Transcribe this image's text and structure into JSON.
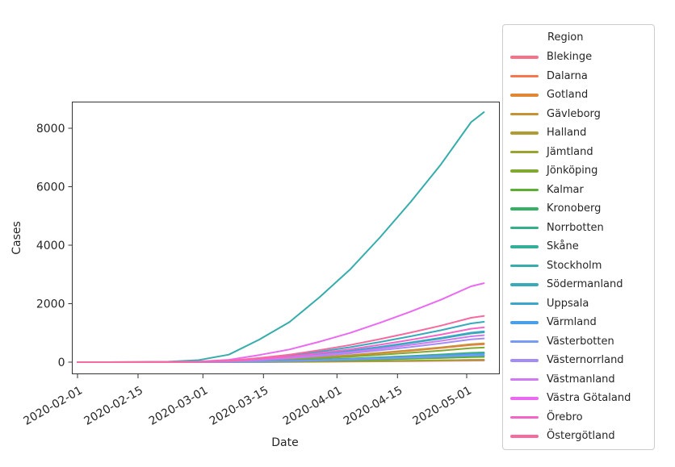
{
  "colors": {
    "text": "#262626",
    "spine": "#333333",
    "legend_border": "#cccccc",
    "background": "#ffffff"
  },
  "chart_data": {
    "type": "line",
    "title": "",
    "xlabel": "Date",
    "ylabel": "Cases",
    "legend_title": "Region",
    "legend_position": "right-outside",
    "grid": false,
    "x_start": "2020-02-01",
    "x_ticks": [
      "2020-02-01",
      "2020-02-15",
      "2020-03-01",
      "2020-03-15",
      "2020-04-01",
      "2020-04-15",
      "2020-05-01"
    ],
    "y_ticks": [
      0,
      2000,
      4000,
      6000,
      8000
    ],
    "ylim": [
      -390,
      8910
    ],
    "x": [
      "2020-02-01",
      "2020-02-08",
      "2020-02-15",
      "2020-02-22",
      "2020-02-29",
      "2020-03-07",
      "2020-03-14",
      "2020-03-21",
      "2020-03-28",
      "2020-04-04",
      "2020-04-11",
      "2020-04-18",
      "2020-04-25",
      "2020-05-02",
      "2020-05-05"
    ],
    "series": [
      {
        "name": "Blekinge",
        "color": "#f77189",
        "values": [
          0,
          0,
          0,
          0,
          0,
          2,
          5,
          9,
          14,
          20,
          28,
          35,
          43,
          53,
          55
        ]
      },
      {
        "name": "Dalarna",
        "color": "#f7764d",
        "values": [
          0,
          0,
          1,
          1,
          5,
          18,
          55,
          98,
          159,
          226,
          305,
          390,
          482,
          586,
          610
        ]
      },
      {
        "name": "Gotland",
        "color": "#e08634",
        "values": [
          0,
          0,
          0,
          0,
          1,
          2,
          7,
          13,
          21,
          30,
          40,
          51,
          63,
          77,
          80
        ]
      },
      {
        "name": "Gävleborg",
        "color": "#c69233",
        "values": [
          0,
          0,
          1,
          1,
          5,
          19,
          58,
          102,
          166,
          237,
          320,
          410,
          506,
          614,
          640
        ]
      },
      {
        "name": "Halland",
        "color": "#b19c31",
        "values": [
          0,
          0,
          0,
          1,
          2,
          9,
          28,
          50,
          81,
          115,
          155,
          198,
          245,
          298,
          310
        ]
      },
      {
        "name": "Jämtland",
        "color": "#9aa331",
        "values": [
          0,
          0,
          0,
          0,
          1,
          2,
          7,
          13,
          21,
          30,
          40,
          51,
          63,
          77,
          80
        ]
      },
      {
        "name": "Jönköping",
        "color": "#81a931",
        "values": [
          0,
          0,
          0,
          1,
          4,
          15,
          45,
          80,
          130,
          185,
          250,
          320,
          395,
          480,
          500
        ]
      },
      {
        "name": "Kalmar",
        "color": "#5bae33",
        "values": [
          0,
          0,
          0,
          0,
          1,
          5,
          16,
          29,
          47,
          67,
          90,
          115,
          142,
          173,
          180
        ]
      },
      {
        "name": "Kronoberg",
        "color": "#35b065",
        "values": [
          0,
          0,
          0,
          1,
          3,
          10,
          30,
          53,
          86,
          122,
          165,
          211,
          261,
          317,
          330
        ]
      },
      {
        "name": "Norrbotten",
        "color": "#33b089",
        "values": [
          0,
          0,
          0,
          0,
          2,
          7,
          21,
          37,
          60,
          85,
          115,
          147,
          182,
          221,
          230
        ]
      },
      {
        "name": "Skåne",
        "color": "#34af99",
        "values": [
          0,
          0,
          1,
          2,
          8,
          31,
          92,
          163,
          265,
          377,
          510,
          653,
          806,
          979,
          1020
        ]
      },
      {
        "name": "Stockholm",
        "color": "#36acab",
        "values": [
          0,
          0,
          9,
          17,
          68,
          257,
          770,
          1368,
          2223,
          3164,
          4275,
          5472,
          6755,
          8208,
          8550
        ]
      },
      {
        "name": "Södermanland",
        "color": "#37aabb",
        "values": [
          0,
          0,
          1,
          3,
          11,
          41,
          124,
          221,
          359,
          511,
          690,
          883,
          1090,
          1325,
          1380
        ]
      },
      {
        "name": "Uppsala",
        "color": "#3aa6cc",
        "values": [
          0,
          0,
          1,
          2,
          8,
          32,
          95,
          168,
          273,
          389,
          525,
          672,
          830,
          1008,
          1050
        ]
      },
      {
        "name": "Värmland",
        "color": "#49a0e9",
        "values": [
          0,
          0,
          0,
          1,
          2,
          9,
          26,
          46,
          75,
          107,
          145,
          186,
          229,
          278,
          290
        ]
      },
      {
        "name": "Västerbotten",
        "color": "#779af4",
        "values": [
          0,
          0,
          0,
          0,
          2,
          7,
          22,
          38,
          62,
          89,
          120,
          154,
          190,
          230,
          240
        ]
      },
      {
        "name": "Västernorrland",
        "color": "#a38df4",
        "values": [
          0,
          0,
          1,
          2,
          6,
          24,
          73,
          130,
          211,
          300,
          405,
          518,
          640,
          778,
          810
        ]
      },
      {
        "name": "Västmanland",
        "color": "#cf79f4",
        "values": [
          0,
          0,
          1,
          2,
          7,
          28,
          83,
          147,
          239,
          340,
          460,
          589,
          727,
          883,
          920
        ]
      },
      {
        "name": "Västra Götaland",
        "color": "#ea6af1",
        "values": [
          0,
          0,
          3,
          5,
          22,
          81,
          243,
          432,
          702,
          999,
          1350,
          1728,
          2133,
          2592,
          2700
        ]
      },
      {
        "name": "Örebro",
        "color": "#f565c8",
        "values": [
          0,
          0,
          1,
          2,
          10,
          36,
          107,
          190,
          309,
          440,
          595,
          762,
          940,
          1142,
          1190
        ]
      },
      {
        "name": "Östergötland",
        "color": "#f76a9f",
        "values": [
          0,
          0,
          2,
          3,
          13,
          47,
          142,
          253,
          411,
          585,
          790,
          1011,
          1248,
          1517,
          1580
        ]
      }
    ]
  }
}
